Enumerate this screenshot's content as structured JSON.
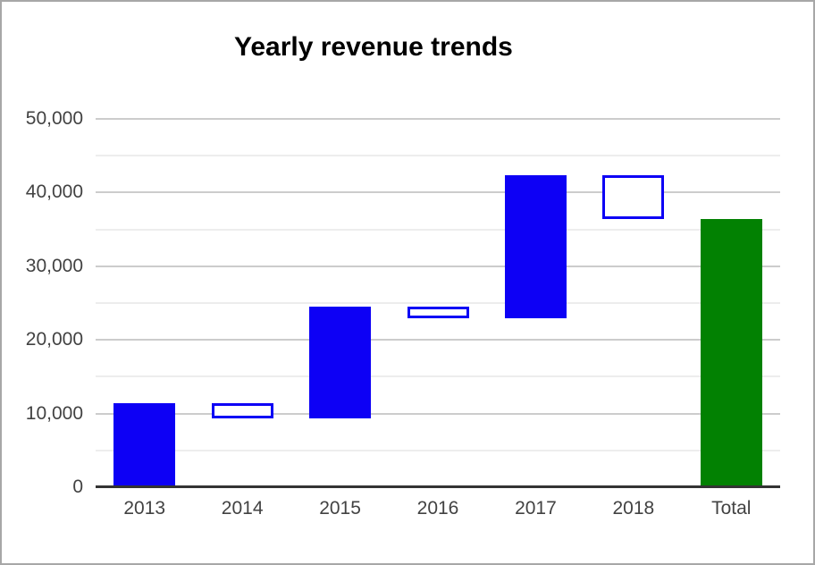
{
  "window": {
    "background": "#ffffff",
    "border_color": "#a7a7a7"
  },
  "chart_data": {
    "type": "waterfall",
    "title": "Yearly revenue trends",
    "categories": [
      "2013",
      "2014",
      "2015",
      "2016",
      "2017",
      "2018",
      "Total"
    ],
    "series": [
      {
        "label": "2013",
        "start": 0,
        "end": 11400,
        "kind": "increase"
      },
      {
        "label": "2014",
        "start": 11400,
        "end": 9400,
        "kind": "decrease"
      },
      {
        "label": "2015",
        "start": 9400,
        "end": 24500,
        "kind": "increase"
      },
      {
        "label": "2016",
        "start": 24500,
        "end": 22900,
        "kind": "decrease"
      },
      {
        "label": "2017",
        "start": 22900,
        "end": 42300,
        "kind": "increase"
      },
      {
        "label": "2018",
        "start": 42300,
        "end": 36400,
        "kind": "decrease"
      },
      {
        "label": "Total",
        "start": 0,
        "end": 36400,
        "kind": "total"
      }
    ],
    "y_axis": {
      "min": 0,
      "max": 50000,
      "major_step": 10000,
      "minor_step": 5000,
      "tick_labels": [
        "0",
        "10,000",
        "20,000",
        "30,000",
        "40,000",
        "50,000"
      ]
    },
    "x_axis": {
      "tick_labels": [
        "2013",
        "2014",
        "2015",
        "2016",
        "2017",
        "2018",
        "Total"
      ]
    },
    "legend": "none",
    "grid": "on",
    "colors": {
      "increase_fill": "#0d00f5",
      "decrease_fill": "#ffffff",
      "decrease_stroke": "#0d00f5",
      "total_fill": "#028102",
      "gridline_major": "#cccccc",
      "gridline_minor": "#ededed",
      "axis_line": "#333333",
      "axis_label": "#424242",
      "title": "#000000"
    }
  }
}
